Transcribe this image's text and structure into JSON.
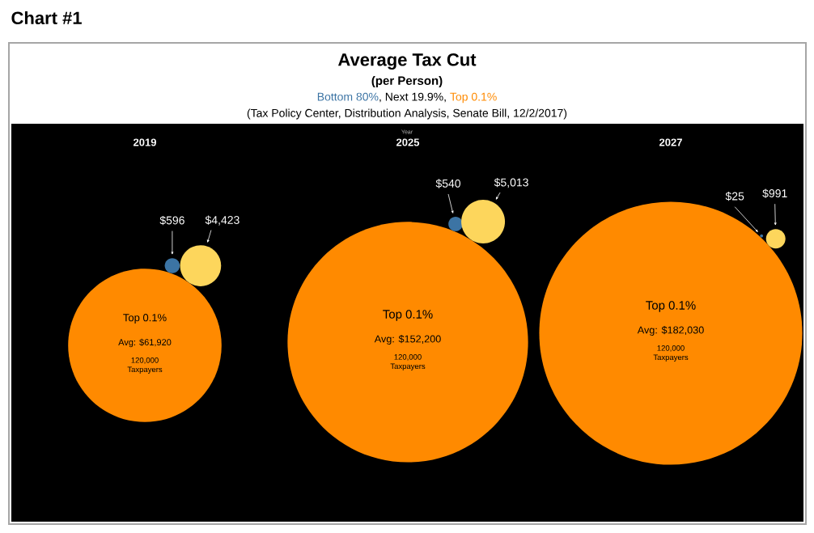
{
  "chart_data": {
    "type": "other",
    "title": "Average Tax Cut",
    "subtitle": "(per Person)",
    "xlabel": "Year",
    "categories": [
      "2019",
      "2025",
      "2027"
    ],
    "legend": "top",
    "series": [
      {
        "name": "Bottom 80%",
        "color": "#3c74a4",
        "values": [
          596,
          540,
          25
        ],
        "value_labels": [
          "$596",
          "$540",
          "$25"
        ]
      },
      {
        "color": "#fdd65c",
        "values": [
          4423,
          5013,
          991
        ],
        "value_labels": [
          "$4,423",
          "$5,013",
          "$991"
        ]
      },
      {
        "name": "Top 0.1%",
        "color": "#ff8a00",
        "values": [
          61920,
          152200,
          182030
        ],
        "value_labels": [
          "Avg: $61,920",
          "Avg: $152,200",
          "Avg: $182,030"
        ]
      }
    ],
    "annotations": [
      "Chart #1",
      "(Tax Policy Center, Distribution Analysis, Senate Bill, 12/2/2017)",
      "120,000 Taxpayers",
      "120,000 Taxpayers",
      "120,000 Taxpayers",
      ", Next 19.9%,"
    ]
  }
}
